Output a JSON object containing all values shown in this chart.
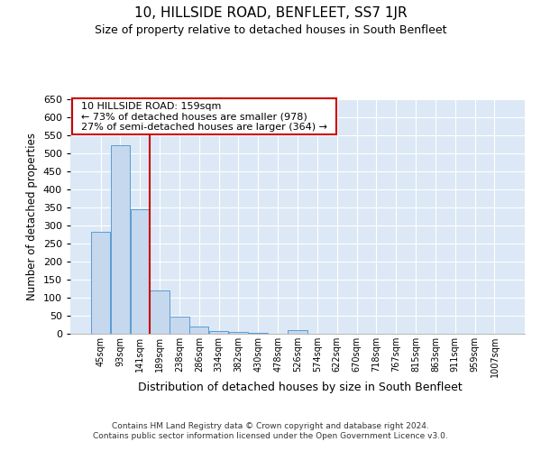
{
  "title": "10, HILLSIDE ROAD, BENFLEET, SS7 1JR",
  "subtitle": "Size of property relative to detached houses in South Benfleet",
  "xlabel": "Distribution of detached houses by size in South Benfleet",
  "ylabel": "Number of detached properties",
  "footer_line1": "Contains HM Land Registry data © Crown copyright and database right 2024.",
  "footer_line2": "Contains public sector information licensed under the Open Government Licence v3.0.",
  "bin_labels": [
    "45sqm",
    "93sqm",
    "141sqm",
    "189sqm",
    "238sqm",
    "286sqm",
    "334sqm",
    "382sqm",
    "430sqm",
    "478sqm",
    "526sqm",
    "574sqm",
    "622sqm",
    "670sqm",
    "718sqm",
    "767sqm",
    "815sqm",
    "863sqm",
    "911sqm",
    "959sqm",
    "1007sqm"
  ],
  "bar_values": [
    283,
    522,
    345,
    120,
    48,
    19,
    8,
    4,
    2,
    1,
    10,
    0,
    0,
    0,
    1,
    0,
    0,
    0,
    0,
    0,
    1
  ],
  "bar_color": "#c5d8ed",
  "bar_edge_color": "#5b9bd5",
  "red_line_x": 2.5,
  "ylim": [
    0,
    650
  ],
  "yticks": [
    0,
    50,
    100,
    150,
    200,
    250,
    300,
    350,
    400,
    450,
    500,
    550,
    600,
    650
  ],
  "annotation_text": "  10 HILLSIDE ROAD: 159sqm  \n  ← 73% of detached houses are smaller (978)  \n  27% of semi-detached houses are larger (364) →  ",
  "annotation_box_color": "#ffffff",
  "annotation_box_edge": "#cc0000",
  "red_line_color": "#cc0000",
  "background_color": "#dce8f5",
  "grid_color": "#ffffff",
  "title_fontsize": 11,
  "subtitle_fontsize": 9
}
